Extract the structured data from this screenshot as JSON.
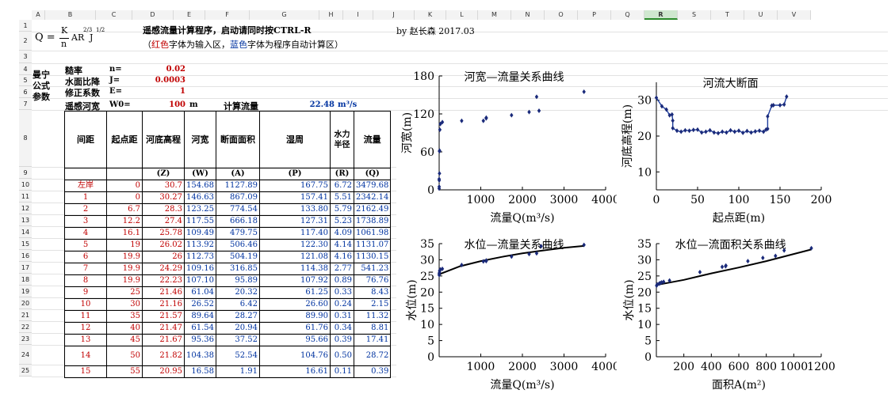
{
  "columns": [
    "A",
    "B",
    "C",
    "D",
    "E",
    "F",
    "G",
    "H",
    "I",
    "J",
    "K",
    "L",
    "M",
    "N",
    "O",
    "P",
    "Q",
    "R",
    "S",
    "T",
    "U",
    "V"
  ],
  "selected_column": "R",
  "rows": [
    "1",
    "2",
    "3",
    "4",
    "5",
    "6",
    "7",
    "8",
    "9",
    "10",
    "11",
    "12",
    "13",
    "14",
    "15",
    "16",
    "17",
    "18",
    "19",
    "20",
    "21",
    "22",
    "23",
    "24",
    "25"
  ],
  "formula": {
    "lhs": "Q =",
    "k": "K",
    "n": "n",
    "rest": "AR",
    "rexp": "2/3",
    "j": "J",
    "jexp": "1/2"
  },
  "title_line1": "遥感流量计算程序，启动请同时按CTRL-R",
  "title_line2_open": "（",
  "title_line2_red": "红色",
  "title_line2_mid": "字体为输入区，",
  "title_line2_blue": "蓝色",
  "title_line2_end": "字体为程序自动计算区）",
  "author": "by 赵长森 2017.03",
  "params": {
    "group_label": "曼宁公式参数",
    "roughness_label": "糙率",
    "roughness_symbol": "n=",
    "roughness_value": "0.02",
    "slope_label": "水面比降",
    "slope_symbol": "J=",
    "slope_value": "0.0003",
    "coef_label": "修正系数",
    "coef_symbol": "E=",
    "coef_value": "1",
    "width_label": "遥感河宽",
    "width_symbol": "W0=",
    "width_value": "100",
    "width_unit": "m",
    "flow_label": "计算流量",
    "flow_value": "22.48",
    "flow_unit": "m³/s"
  },
  "table": {
    "headers": [
      "间距",
      "起点距",
      "河底高程",
      "河宽",
      "断面面积",
      "湿周",
      "水力半径",
      "流量"
    ],
    "units": [
      "",
      "",
      "(Z)",
      "(W)",
      "(A)",
      "(P)",
      "(R)",
      "(Q)"
    ],
    "rows": [
      [
        "左岸",
        "0",
        "30.7",
        "154.68",
        "1127.89",
        "167.75",
        "6.72",
        "3479.68"
      ],
      [
        "1",
        "0",
        "30.27",
        "146.63",
        "867.09",
        "157.41",
        "5.51",
        "2342.14"
      ],
      [
        "2",
        "6.7",
        "28.3",
        "123.25",
        "774.54",
        "133.80",
        "5.79",
        "2162.49"
      ],
      [
        "3",
        "12.2",
        "27.4",
        "117.55",
        "666.18",
        "127.31",
        "5.23",
        "1738.89"
      ],
      [
        "4",
        "16.1",
        "25.78",
        "109.49",
        "479.75",
        "117.40",
        "4.09",
        "1061.98"
      ],
      [
        "5",
        "19",
        "26.02",
        "113.92",
        "506.46",
        "122.30",
        "4.14",
        "1131.07"
      ],
      [
        "6",
        "19.9",
        "26",
        "112.73",
        "504.19",
        "121.08",
        "4.16",
        "1130.15"
      ],
      [
        "7",
        "19.9",
        "24.29",
        "109.16",
        "316.85",
        "114.38",
        "2.77",
        "541.23"
      ],
      [
        "8",
        "19.9",
        "22.23",
        "107.10",
        "95.89",
        "107.92",
        "0.89",
        "76.76"
      ],
      [
        "9",
        "25",
        "21.46",
        "61.04",
        "20.32",
        "61.25",
        "0.33",
        "8.43"
      ],
      [
        "10",
        "30",
        "21.16",
        "26.52",
        "6.42",
        "26.60",
        "0.24",
        "2.15"
      ],
      [
        "11",
        "35",
        "21.57",
        "89.64",
        "28.27",
        "89.90",
        "0.31",
        "11.32"
      ],
      [
        "12",
        "40",
        "21.47",
        "61.54",
        "20.94",
        "61.76",
        "0.34",
        "8.81"
      ],
      [
        "13",
        "45",
        "21.67",
        "95.36",
        "37.52",
        "95.66",
        "0.39",
        "17.41"
      ],
      [
        "14",
        "50",
        "21.82",
        "104.38",
        "52.54",
        "104.76",
        "0.50",
        "28.72"
      ],
      [
        "15",
        "55",
        "20.95",
        "16.58",
        "1.91",
        "16.61",
        "0.11",
        "0.39"
      ]
    ]
  },
  "chart_data": [
    {
      "type": "scatter",
      "title": "河宽—流量关系曲线",
      "xlabel": "流量Q(m³/s)",
      "ylabel": "河宽(m)",
      "xlim": [
        0,
        4000
      ],
      "ylim": [
        0,
        180
      ],
      "xticks": [
        "1000",
        "2000",
        "3000",
        "4000"
      ],
      "yticks": [
        "0",
        "60",
        "120",
        "180"
      ],
      "points": [
        [
          0,
          2
        ],
        [
          1,
          5
        ],
        [
          2,
          15
        ],
        [
          8,
          26
        ],
        [
          11,
          62
        ],
        [
          17,
          95
        ],
        [
          29,
          104
        ],
        [
          8,
          61
        ],
        [
          0,
          17
        ],
        [
          77,
          107
        ],
        [
          541,
          109
        ],
        [
          1062,
          109
        ],
        [
          1130,
          113
        ],
        [
          1131,
          114
        ],
        [
          1739,
          118
        ],
        [
          2162,
          123
        ],
        [
          2342,
          147
        ],
        [
          2400,
          125
        ],
        [
          3480,
          155
        ]
      ]
    },
    {
      "type": "line",
      "title": "河流大断面",
      "xlabel": "起点距(m)",
      "ylabel": "河底高程(m)",
      "xlim": [
        0,
        200
      ],
      "ylim": [
        5,
        35
      ],
      "xticks": [
        "0",
        "50",
        "100",
        "150",
        "200"
      ],
      "yticks": [
        "10",
        "20",
        "30"
      ],
      "points": [
        [
          0,
          30.7
        ],
        [
          6.7,
          28.3
        ],
        [
          12.2,
          27.4
        ],
        [
          16.1,
          25.8
        ],
        [
          19,
          26
        ],
        [
          19.9,
          24.3
        ],
        [
          19.9,
          22.2
        ],
        [
          25,
          21.5
        ],
        [
          30,
          21.2
        ],
        [
          35,
          21.6
        ],
        [
          40,
          21.5
        ],
        [
          45,
          21.7
        ],
        [
          50,
          21.8
        ],
        [
          55,
          21
        ],
        [
          60,
          21.2
        ],
        [
          65,
          21.6
        ],
        [
          70,
          21
        ],
        [
          75,
          20.8
        ],
        [
          80,
          21.2
        ],
        [
          85,
          21
        ],
        [
          90,
          21.6
        ],
        [
          95,
          21.2
        ],
        [
          100,
          21.5
        ],
        [
          105,
          20.9
        ],
        [
          110,
          21.4
        ],
        [
          115,
          21
        ],
        [
          120,
          21.3
        ],
        [
          125,
          21.5
        ],
        [
          130,
          21.2
        ],
        [
          133,
          21.8
        ],
        [
          135,
          22
        ],
        [
          135,
          25.5
        ],
        [
          140,
          28.5
        ],
        [
          142,
          28.6
        ],
        [
          150,
          28.6
        ],
        [
          155,
          28.8
        ],
        [
          158,
          31
        ]
      ]
    },
    {
      "type": "scatter",
      "title": "水位—流量关系曲线",
      "xlabel": "流量Q(m³/s)",
      "ylabel": "水位(m)",
      "xlim": [
        0,
        4000
      ],
      "ylim": [
        0,
        35
      ],
      "xticks": [
        "1000",
        "2000",
        "3000",
        "4000"
      ],
      "yticks": [
        "0",
        "5",
        "10",
        "15",
        "20",
        "25",
        "30",
        "35"
      ],
      "points": [
        [
          0,
          25.3
        ],
        [
          2,
          25.8
        ],
        [
          9,
          26.0
        ],
        [
          11,
          26.5
        ],
        [
          17,
          26.8
        ],
        [
          29,
          27.0
        ],
        [
          77,
          27.2
        ],
        [
          541,
          28.4
        ],
        [
          1062,
          29.5
        ],
        [
          1130,
          29.6
        ],
        [
          1131,
          29.8
        ],
        [
          1739,
          31.0
        ],
        [
          2162,
          31.8
        ],
        [
          2342,
          32.0
        ],
        [
          2450,
          34.2
        ],
        [
          3480,
          34.6
        ]
      ],
      "trend": [
        [
          0,
          25.5
        ],
        [
          500,
          28.0
        ],
        [
          1000,
          29.6
        ],
        [
          1500,
          30.9
        ],
        [
          2000,
          32.0
        ],
        [
          2500,
          32.9
        ],
        [
          3000,
          33.7
        ],
        [
          3480,
          34.3
        ]
      ]
    },
    {
      "type": "scatter",
      "title": "水位—流面积关系曲线",
      "xlabel": "面积A(m²)",
      "ylabel": "水位(m)",
      "xlim": [
        0,
        1200
      ],
      "ylim": [
        0,
        35
      ],
      "xticks": [
        "200",
        "400",
        "600",
        "800",
        "1000",
        "1200"
      ],
      "yticks": [
        "0",
        "5",
        "10",
        "15",
        "20",
        "25",
        "30",
        "35"
      ],
      "points": [
        [
          2,
          22
        ],
        [
          6,
          22.4
        ],
        [
          20,
          22.6
        ],
        [
          28,
          22.8
        ],
        [
          38,
          23.0
        ],
        [
          53,
          23.2
        ],
        [
          96,
          23.6
        ],
        [
          317,
          26.2
        ],
        [
          479,
          27.8
        ],
        [
          504,
          28.0
        ],
        [
          506,
          28.2
        ],
        [
          666,
          29.6
        ],
        [
          775,
          30.6
        ],
        [
          867,
          31.2
        ],
        [
          930,
          32.9
        ],
        [
          1128,
          33.6
        ]
      ],
      "trend": [
        [
          0,
          22.2
        ],
        [
          200,
          23.8
        ],
        [
          400,
          25.8
        ],
        [
          600,
          27.6
        ],
        [
          800,
          29.6
        ],
        [
          1000,
          31.8
        ],
        [
          1128,
          33.2
        ]
      ]
    }
  ]
}
